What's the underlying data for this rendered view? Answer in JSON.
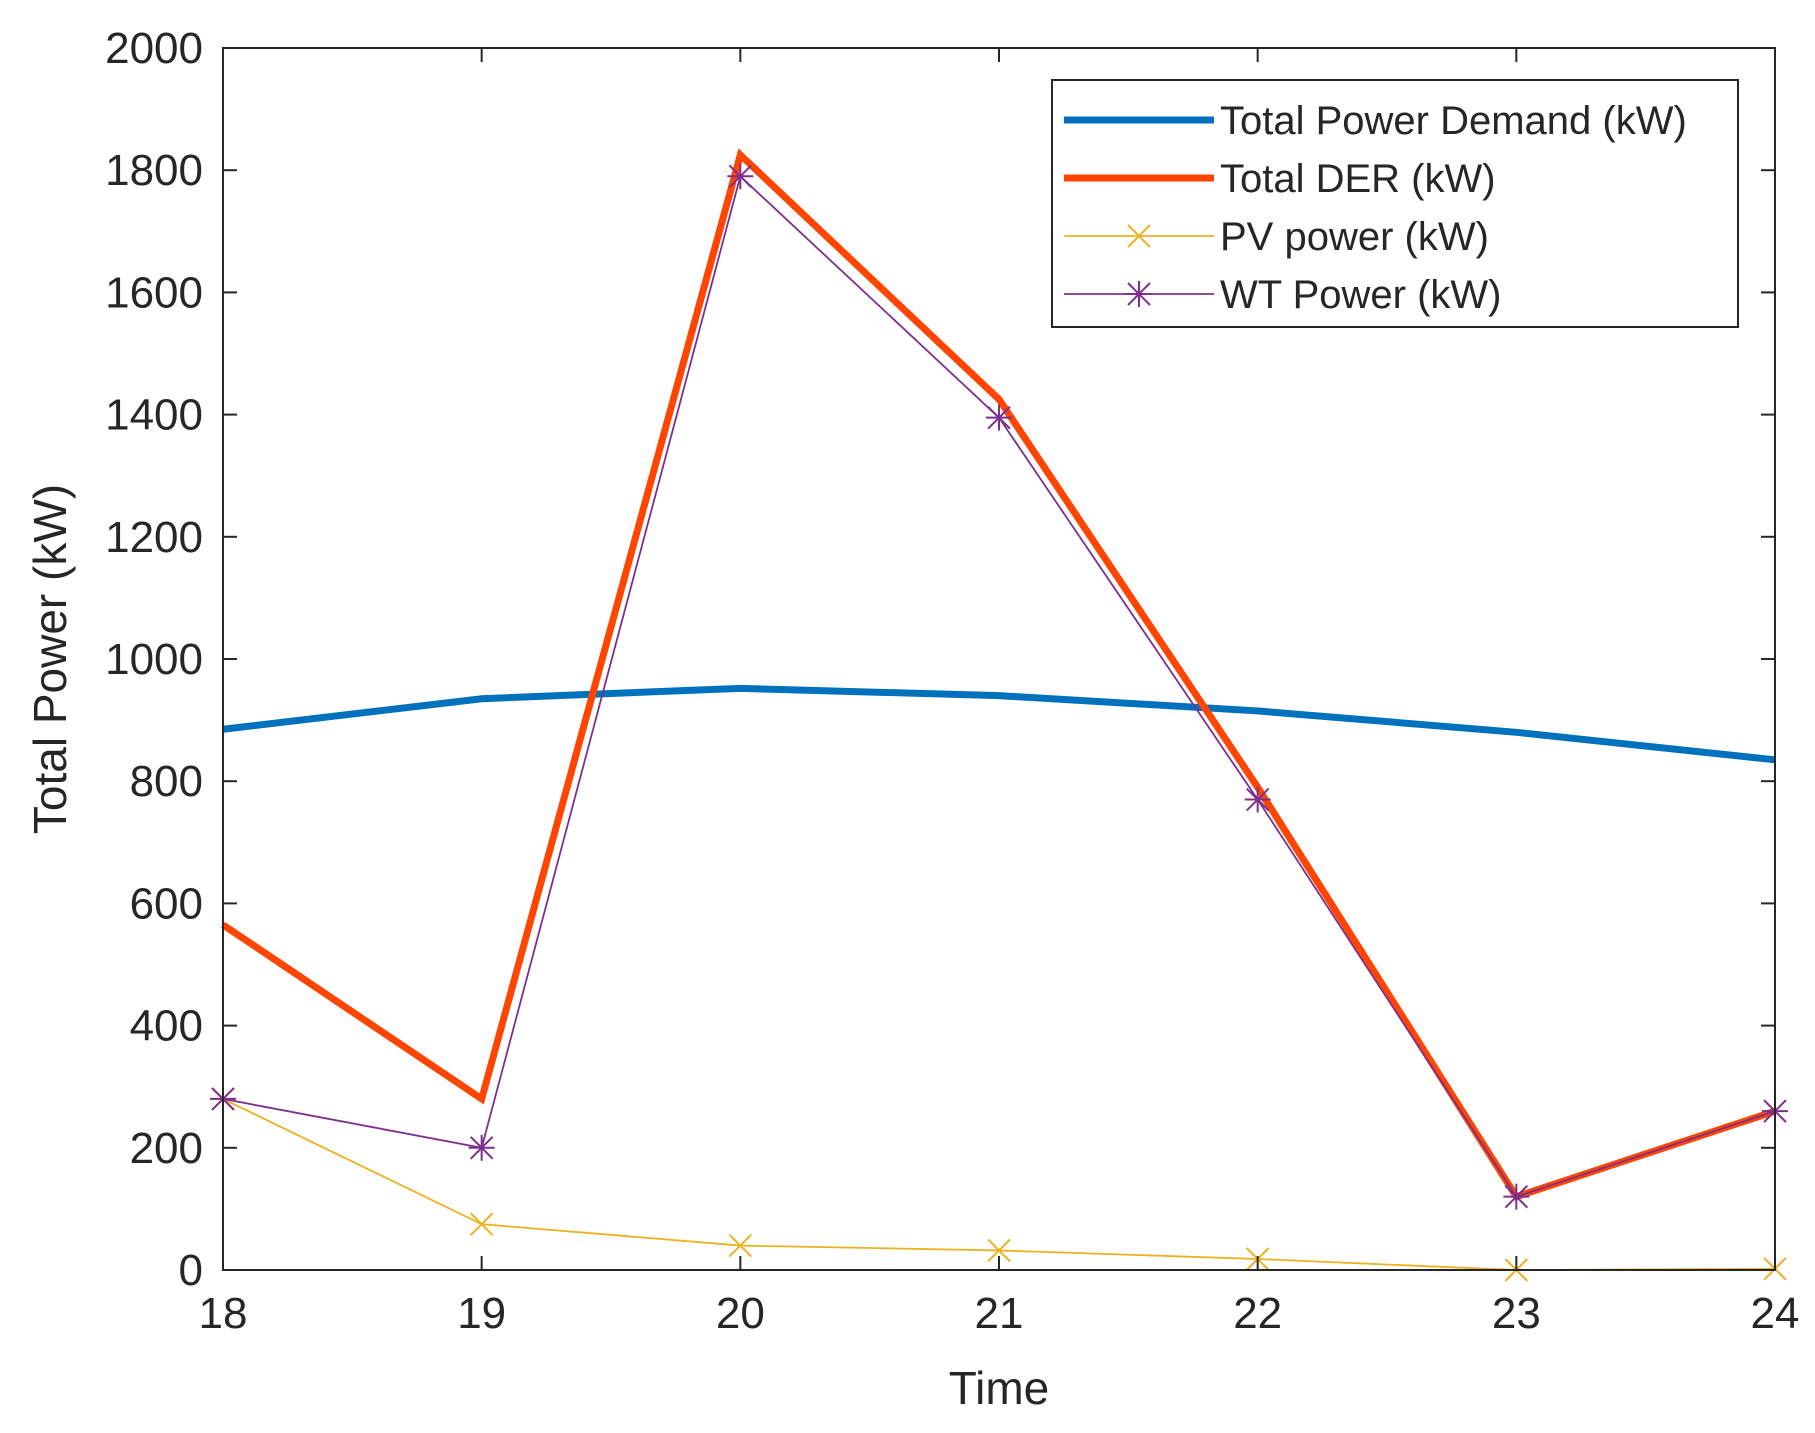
{
  "chart_data": {
    "type": "line",
    "title": "",
    "xlabel": "Time",
    "ylabel": "Total Power (kW)",
    "xlim": [
      18,
      24
    ],
    "ylim": [
      0,
      2000
    ],
    "xticks": [
      "18",
      "19",
      "20",
      "21",
      "22",
      "23",
      "24"
    ],
    "yticks": [
      "0",
      "200",
      "400",
      "600",
      "800",
      "1000",
      "1200",
      "1400",
      "1600",
      "1800",
      "2000"
    ],
    "grid": false,
    "legend_position": "top-right",
    "x": [
      18,
      19,
      20,
      21,
      22,
      23,
      24
    ],
    "series": [
      {
        "name": "Total Power Demand (kW)",
        "color": "#0072BD",
        "marker": "none",
        "values": [
          885,
          935,
          952,
          940,
          915,
          880,
          835
        ]
      },
      {
        "name": "Total DER (kW)",
        "color": "#FF4500",
        "marker": "none",
        "values": [
          565,
          280,
          1825,
          1425,
          790,
          120,
          260
        ]
      },
      {
        "name": "PV power (kW)",
        "color": "#EDB120",
        "marker": "x",
        "values": [
          280,
          75,
          40,
          32,
          18,
          0,
          2
        ]
      },
      {
        "name": "WT Power (kW)",
        "color": "#7E2F8E",
        "marker": "asterisk",
        "values": [
          280,
          200,
          1790,
          1395,
          770,
          120,
          260
        ]
      }
    ]
  }
}
